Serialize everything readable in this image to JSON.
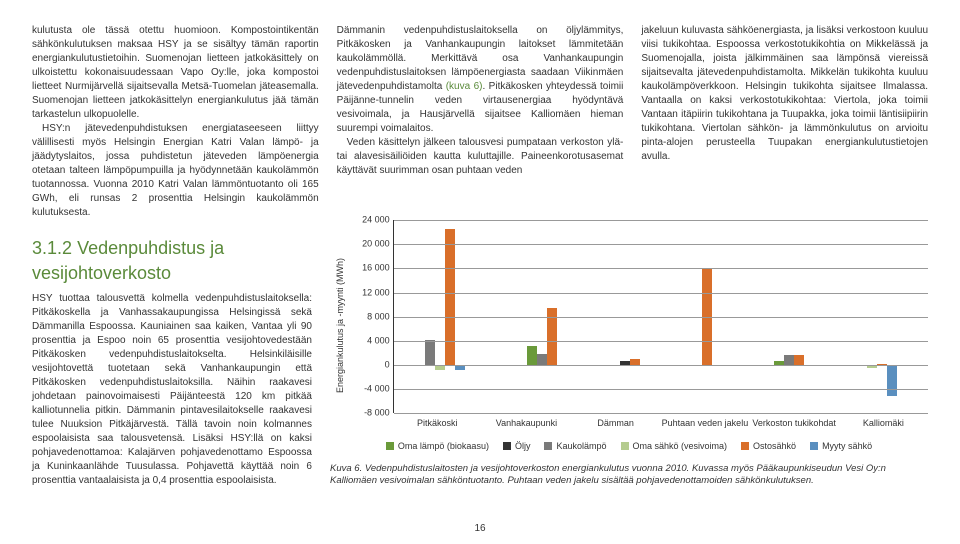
{
  "col1": {
    "p1": "kulutusta ole tässä otettu huomioon. Kompostointikentän sähkönkulutuksen maksaa HSY ja se sisältyy tämän raportin energiankulutustietoihin. Suomenojan lietteen jatkokäsittely on ulkoistettu kokonaisuudessaan Vapo Oy:lle, joka kompostoi lietteet Nurmijärvellä sijaitsevalla Metsä-Tuomelan jäteasemalla. Suomenojan lietteen jatkokäsittelyn energiankulutus jää tämän tarkastelun ulkopuolelle.",
    "p2": "HSY:n jätevedenpuhdistuksen energiataseeseen liittyy välillisesti myös Helsingin Energian Katri Valan lämpö- ja jäädytyslaitos, jossa puhdistetun jäteveden lämpöenergia otetaan talteen lämpöpumpuilla ja hyödynnetään kaukolämmön tuotannossa. Vuonna 2010 Katri Valan lämmöntuotanto oli 165 GWh, eli runsas 2 prosenttia Helsingin kaukolämmön kulutuksesta."
  },
  "col2": {
    "p1a": "Dämmanin vedenpuhdistuslaitoksella on öljylämmitys, Pitkäkosken ja Vanhankaupungin laitokset lämmitetään kaukolämmöllä. Merkittävä osa Vanhankaupungin vedenpuhdistuslaitoksen lämpöenergiasta saadaan Viikinmäen jätevedenpuhdistamolta ",
    "link": "(kuva 6)",
    "p1b": ". Pitkäkosken yhteydessä toimii Päijänne-tunnelin veden virtausenergiaa hyödyntävä vesivoimala, ja Hausjärvellä sijaitsee Kalliomäen hieman suurempi voimalaitos.",
    "p2": "Veden käsittelyn jälkeen talousvesi pumpataan verkoston ylä- tai alavesisäiliöiden kautta kuluttajille. Paineenkorotusasemat käyttävät suurimman osan puhtaan veden"
  },
  "col3": {
    "p1": "jakeluun kuluvasta sähköenergiasta, ja lisäksi verkostoon kuuluu viisi tukikohtaa. Espoossa verkostotukikohtia on Mikkelässä ja Suomenojalla, joista jälkimmäinen saa lämpönsä viereissä sijaitsevalta jätevedenpuhdistamolta. Mikkelän tukikohta kuuluu kaukolämpöverkkoon. Helsingin tukikohta sijaitsee Ilmalassa. Vantaalla on kaksi verkostotukikohtaa: Viertola, joka toimii Vantaan itäpiirin tukikohtana ja Tuupakka, joka toimii läntisiipiirin tukikohtana. Viertolan sähkön- ja lämmönkulutus on arvioitu pinta-alojen perusteella Tuupakan energiankulutustietojen avulla."
  },
  "section": {
    "num": "3.1.2",
    "title": "Vedenpuhdistus ja vesijohtoverkosto"
  },
  "lower_p": "HSY tuottaa talousvettä kolmella vedenpuhdistuslaitoksella: Pitkäkoskella ja Vanhassakaupungissa Helsingissä sekä Dämmanilla Espoossa. Kauniainen saa kaiken, Vantaa yli 90 prosenttia ja Espoo noin 65 prosenttia vesijohtovedestään Pitkäkosken vedenpuhdistuslaitokselta. Helsinkiläisille vesijohtovettä tuotetaan sekä Vanhankaupungin että Pitkäkosken vedenpuhdistuslaitoksilla. Näihin raakavesi johdetaan painovoimaisesti Päijänteestä 120 km pitkää kalliotunnelia pitkin. Dämmanin pintavesilaitokselle raakavesi tulee Nuuksion Pitkäjärvestä. Tällä tavoin noin kolmannes espoolaisista saa talousvetensä. Lisäksi HSY:llä on kaksi pohjavedenottamoa: Kalajärven pohjavedenottamo Espoossa ja Kuninkaanlähde Tuusulassa. Pohjavettä käyttää noin 6 prosenttia vantaalaisista ja 0,4 prosenttia espoolaisista.",
  "chart": {
    "ylabel": "Energiankulutus ja -myynti (MWh)",
    "ymin": -8000,
    "ymax": 24000,
    "yticks": [
      -8000,
      -4000,
      0,
      4000,
      8000,
      12000,
      16000,
      20000,
      24000
    ],
    "ytick_labels": [
      "-8 000",
      "-4 000",
      "0",
      "4 000",
      "8 000",
      "12 000",
      "16 000",
      "20 000",
      "24 000"
    ],
    "categories": [
      "Pitkäkoski",
      "Vanhakaupunki",
      "Dämman",
      "Puhtaan veden jakelu",
      "Verkoston tukikohdat",
      "Kalliomäki"
    ],
    "grid_color": "#999",
    "series_colors": {
      "oma_lampo": "#6a9a3a",
      "oljy": "#333333",
      "kaukolampo": "#7a7a7a",
      "oma_sahko": "#b5cc8f",
      "ostosahko": "#d96f2a",
      "myyty_sahko": "#5a8fbf"
    },
    "groups": [
      {
        "bars": [
          {
            "series": "kaukolampo",
            "v": 4200
          },
          {
            "series": "oma_sahko",
            "v": -800
          },
          {
            "series": "ostosahko",
            "v": 22500
          },
          {
            "series": "myyty_sahko",
            "v": -800
          }
        ]
      },
      {
        "bars": [
          {
            "series": "oma_lampo",
            "v": 3200
          },
          {
            "series": "kaukolampo",
            "v": 1800
          },
          {
            "series": "ostosahko",
            "v": 9500
          }
        ]
      },
      {
        "bars": [
          {
            "series": "oljy",
            "v": 700
          },
          {
            "series": "ostosahko",
            "v": 1000
          }
        ]
      },
      {
        "bars": [
          {
            "series": "ostosahko",
            "v": 16000
          }
        ]
      },
      {
        "bars": [
          {
            "series": "oma_lampo",
            "v": 700
          },
          {
            "series": "kaukolampo",
            "v": 1600
          },
          {
            "series": "ostosahko",
            "v": 1600
          }
        ]
      },
      {
        "bars": [
          {
            "series": "oma_sahko",
            "v": -500
          },
          {
            "series": "ostosahko",
            "v": 200
          },
          {
            "series": "myyty_sahko",
            "v": -5200
          }
        ]
      }
    ],
    "legend": [
      {
        "key": "oma_lampo",
        "label": "Oma lämpö (biokaasu)"
      },
      {
        "key": "oljy",
        "label": "Öljy"
      },
      {
        "key": "kaukolampo",
        "label": "Kaukolämpö"
      },
      {
        "key": "oma_sahko",
        "label": "Oma sähkö (vesivoima)"
      },
      {
        "key": "ostosahko",
        "label": "Ostosähkö"
      },
      {
        "key": "myyty_sahko",
        "label": "Myyty sähkö"
      }
    ]
  },
  "caption": "Kuva 6. Vedenpuhdistuslaitosten ja vesijohtoverkoston energiankulutus vuonna 2010. Kuvassa myös Pääkaupunkiseudun Vesi Oy:n Kalliomäen vesivoimalan sähköntuotanto. Puhtaan veden jakelu sisältää pohjavedenottamoiden sähkönkulutuksen.",
  "pagenum": "16"
}
